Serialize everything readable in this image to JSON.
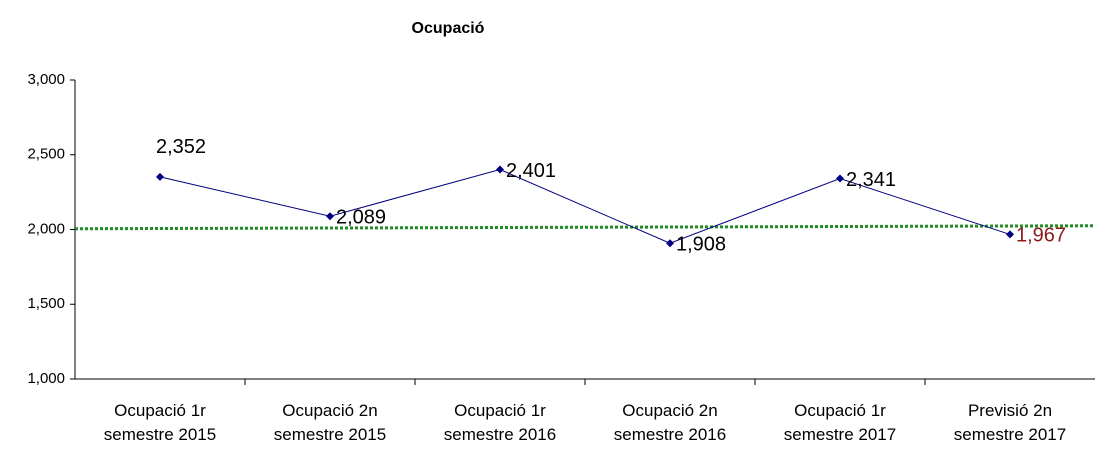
{
  "chart_data": {
    "type": "line",
    "title": "Ocupació",
    "categories": [
      "Ocupació 1r semestre 2015",
      "Ocupació 2n semestre 2015",
      "Ocupació 1r semestre 2016",
      "Ocupació 2n semestre 2016",
      "Ocupació 1r semestre 2017",
      "Previsió 2n semestre 2017"
    ],
    "series": [
      {
        "name": "Ocupació",
        "color": "#000080",
        "values": [
          2352,
          2089,
          2401,
          1908,
          2341,
          1967
        ],
        "value_labels": [
          "2,352",
          "2,089",
          "2,401",
          "1,908",
          "2,341",
          "1,967"
        ],
        "label_colors": [
          "#000000",
          "#000000",
          "#000000",
          "#000000",
          "#000000",
          "#8b1a1a"
        ]
      }
    ],
    "trendline": {
      "color": "#228b22",
      "start": 2005,
      "end": 2025
    },
    "ylim": [
      1000,
      3000
    ],
    "yticks": [
      {
        "value": 1000,
        "label": "1,000"
      },
      {
        "value": 1500,
        "label": "1,500"
      },
      {
        "value": 2000,
        "label": "2,000"
      },
      {
        "value": 2500,
        "label": "2,500"
      },
      {
        "value": 3000,
        "label": "3,000"
      }
    ]
  }
}
